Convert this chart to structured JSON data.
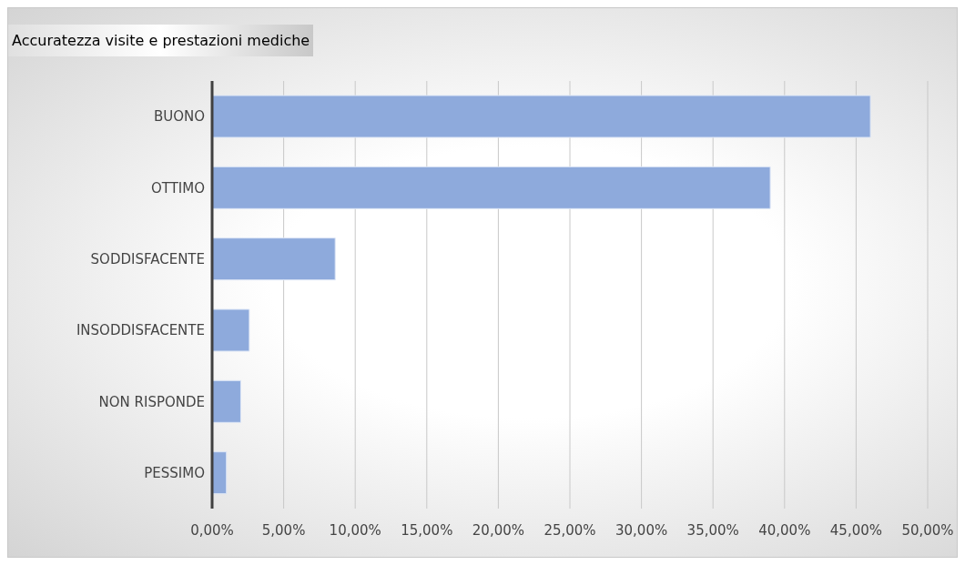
{
  "chart_data": {
    "type": "bar",
    "orientation": "horizontal",
    "title": "Accuratezza visite e prestazioni mediche",
    "categories": [
      "BUONO",
      "OTTIMO",
      "SODDISFACENTE",
      "INSODDISFACENTE",
      "NON RISPONDE",
      "PESSIMO"
    ],
    "values": [
      46.0,
      39.0,
      8.6,
      2.6,
      2.0,
      1.0
    ],
    "color": "#8eaadc",
    "xlim": [
      0,
      50
    ],
    "xticks": [
      {
        "value": 0,
        "label": "0,00%"
      },
      {
        "value": 5,
        "label": "5,00%"
      },
      {
        "value": 10,
        "label": "10,00%"
      },
      {
        "value": 15,
        "label": "15,00%"
      },
      {
        "value": 20,
        "label": "20,00%"
      },
      {
        "value": 25,
        "label": "25,00%"
      },
      {
        "value": 30,
        "label": "30,00%"
      },
      {
        "value": 35,
        "label": "35,00%"
      },
      {
        "value": 40,
        "label": "40,00%"
      },
      {
        "value": 45,
        "label": "45,00%"
      },
      {
        "value": 50,
        "label": "50,00%"
      }
    ],
    "grid": "x"
  }
}
